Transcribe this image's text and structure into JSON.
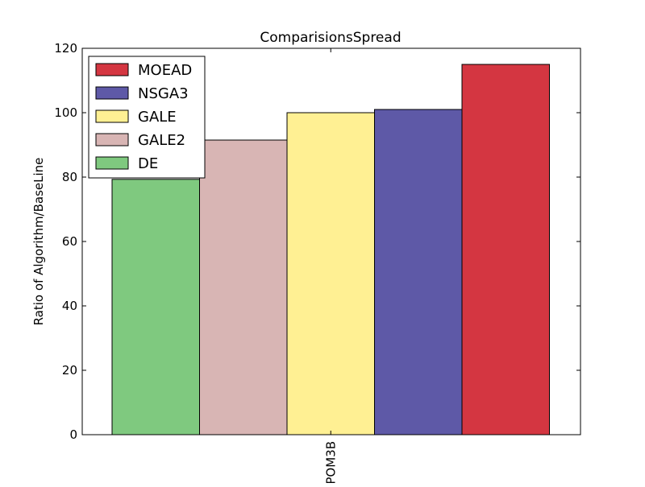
{
  "chart_data": {
    "type": "bar",
    "title": "ComparisionsSpread",
    "xlabel": "",
    "ylabel": "Ratio of Algorithm/BaseLine",
    "categories": [
      "POM3B"
    ],
    "ylim": [
      0,
      120
    ],
    "yticks": [
      0,
      20,
      40,
      60,
      80,
      100,
      120
    ],
    "grid": false,
    "legend_position": "top-left",
    "series": [
      {
        "name": "DE",
        "values": [
          79.3
        ],
        "color": "#7fc97f"
      },
      {
        "name": "GALE2",
        "values": [
          91.5
        ],
        "color": "#d8b5b4"
      },
      {
        "name": "GALE",
        "values": [
          100
        ],
        "color": "#fff093"
      },
      {
        "name": "NSGA3",
        "values": [
          101
        ],
        "color": "#5e59a7"
      },
      {
        "name": "MOEAD",
        "values": [
          115
        ],
        "color": "#d43641"
      }
    ],
    "legend_order": [
      "MOEAD",
      "NSGA3",
      "GALE",
      "GALE2",
      "DE"
    ]
  }
}
